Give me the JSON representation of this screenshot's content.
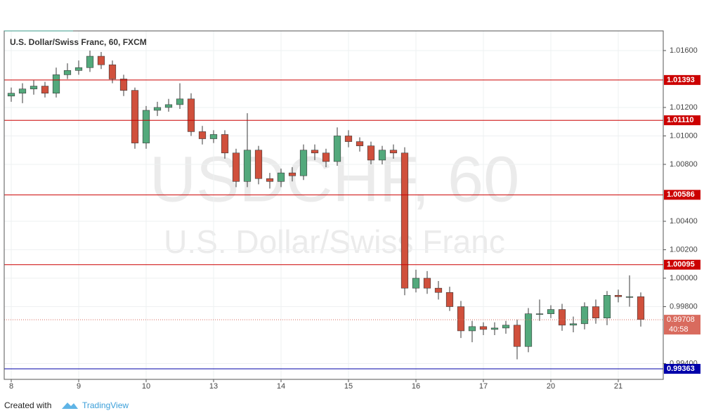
{
  "chart_data": {
    "type": "candlestick",
    "title": "U.S. Dollar/Swiss Franc, 60, FXCM",
    "watermark": "USDCHF, 60",
    "watermark_subtitle": "U.S. Dollar/Swiss Franc",
    "footer": "Created with",
    "brand": "TradingView",
    "countdown": "40:58",
    "grid": true,
    "up_color": "#53a97c",
    "down_color": "#d0503c",
    "wick_color": "#3a3a3a",
    "x": [
      0,
      4,
      8,
      12,
      16,
      20,
      24,
      28,
      32,
      36,
      40,
      44,
      48,
      52,
      56,
      60,
      64,
      68,
      72,
      76,
      80,
      84,
      88,
      92,
      96,
      100,
      104,
      108,
      112,
      116,
      120,
      124,
      128,
      132,
      136,
      140,
      144,
      148,
      152,
      156,
      160,
      164,
      168,
      172,
      176,
      180,
      184,
      188,
      192,
      196,
      200,
      204,
      208,
      212,
      216,
      220,
      224
    ],
    "open": [
      1.0128,
      1.013,
      1.0133,
      1.0135,
      1.013,
      1.0143,
      1.0146,
      1.0148,
      1.0156,
      1.015,
      1.014,
      1.0132,
      1.0095,
      1.0118,
      1.012,
      1.0122,
      1.0126,
      1.0103,
      1.0098,
      1.0101,
      1.0088,
      1.0068,
      1.009,
      1.007,
      1.0068,
      1.0074,
      1.0072,
      1.009,
      1.0088,
      1.0082,
      1.01,
      1.0096,
      1.0093,
      1.0083,
      1.009,
      1.0088,
      0.9993,
      1.0,
      0.9993,
      0.999,
      0.998,
      0.9963,
      0.9966,
      0.9964,
      0.9965,
      0.9967,
      0.9952,
      0.9975,
      0.9975,
      0.9978,
      0.9967,
      0.9968,
      0.998,
      0.9972,
      0.9988,
      0.9987,
      0.9987
    ],
    "high": [
      1.0134,
      1.0137,
      1.0139,
      1.0138,
      1.0148,
      1.0151,
      1.0153,
      1.016,
      1.0159,
      1.0153,
      1.0143,
      1.0134,
      1.0121,
      1.0124,
      1.0126,
      1.0137,
      1.013,
      1.0107,
      1.0104,
      1.0104,
      1.0091,
      1.0116,
      1.0093,
      1.0074,
      1.0077,
      1.0078,
      1.0094,
      1.0094,
      1.0091,
      1.0106,
      1.0104,
      1.0099,
      1.0096,
      1.0093,
      1.0094,
      1.0092,
      1.0006,
      1.0005,
      0.9998,
      0.9994,
      0.9984,
      0.997,
      0.9969,
      0.9969,
      0.997,
      0.9971,
      0.9979,
      0.9985,
      0.9981,
      0.9982,
      0.9973,
      0.9983,
      0.9985,
      0.9991,
      0.9992,
      1.0002,
      0.999
    ],
    "low": [
      1.0124,
      1.0123,
      1.0129,
      1.0127,
      1.0127,
      1.014,
      1.0143,
      1.0145,
      1.0147,
      1.0137,
      1.0128,
      1.0091,
      1.0091,
      1.0114,
      1.0117,
      1.0119,
      1.01,
      1.0094,
      1.0095,
      1.0084,
      1.0064,
      1.0064,
      1.0066,
      1.0063,
      1.0064,
      1.0068,
      1.0069,
      1.0083,
      1.0078,
      1.0079,
      1.0092,
      1.0089,
      1.008,
      1.008,
      1.0084,
      0.9988,
      0.999,
      0.9989,
      0.9985,
      0.9977,
      0.9958,
      0.9955,
      0.996,
      0.996,
      0.9961,
      0.9943,
      0.9948,
      0.997,
      0.9972,
      0.9963,
      0.9962,
      0.9964,
      0.9968,
      0.9967,
      0.9983,
      0.998,
      0.9966
    ],
    "close": [
      1.013,
      1.0133,
      1.0135,
      1.013,
      1.0143,
      1.0146,
      1.0148,
      1.0156,
      1.015,
      1.014,
      1.0132,
      1.0095,
      1.0118,
      1.012,
      1.0122,
      1.0126,
      1.0103,
      1.0098,
      1.0101,
      1.0088,
      1.0068,
      1.009,
      1.007,
      1.0068,
      1.0074,
      1.0072,
      1.009,
      1.0088,
      1.0082,
      1.01,
      1.0096,
      1.0093,
      1.0083,
      1.009,
      1.0088,
      0.9993,
      1.0,
      0.9993,
      0.999,
      0.998,
      0.9963,
      0.9966,
      0.9964,
      0.9965,
      0.9967,
      0.9952,
      0.9975,
      0.9975,
      0.9978,
      0.9967,
      0.9968,
      0.998,
      0.9972,
      0.9988,
      0.9987,
      0.9987,
      0.9971
    ],
    "xlim": [
      -2.5,
      232
    ],
    "ylim": [
      0.99289,
      1.01738
    ],
    "xticks": [
      {
        "value": 0,
        "label": "8"
      },
      {
        "value": 24,
        "label": "9"
      },
      {
        "value": 48,
        "label": "10"
      },
      {
        "value": 72,
        "label": "13"
      },
      {
        "value": 96,
        "label": "14"
      },
      {
        "value": 120,
        "label": "15"
      },
      {
        "value": 144,
        "label": "16"
      },
      {
        "value": 168,
        "label": "17"
      },
      {
        "value": 192,
        "label": "20"
      },
      {
        "value": 216,
        "label": "21"
      }
    ],
    "yticks": [
      {
        "value": 1.016,
        "label": "1.01600"
      },
      {
        "value": 1.012,
        "label": "1.01200"
      },
      {
        "value": 1.01,
        "label": "1.01000"
      },
      {
        "value": 1.008,
        "label": "1.00800"
      },
      {
        "value": 1.004,
        "label": "1.00400"
      },
      {
        "value": 1.002,
        "label": "1.00200"
      },
      {
        "value": 1.0,
        "label": "1.00000"
      },
      {
        "value": 0.998,
        "label": "0.99800"
      },
      {
        "value": 0.994,
        "label": "0.99400"
      }
    ],
    "levels": [
      {
        "value": 1.01393,
        "label": "1.01393",
        "color": "#cc0000"
      },
      {
        "value": 1.0111,
        "label": "1.01110",
        "color": "#cc0000"
      },
      {
        "value": 1.00586,
        "label": "1.00586",
        "color": "#cc0000"
      },
      {
        "value": 1.00095,
        "label": "1.00095",
        "color": "#cc0000"
      },
      {
        "value": 0.99363,
        "label": "0.99363",
        "color": "#0000aa"
      }
    ],
    "last_price": {
      "value": 0.99708,
      "label": "0.99708",
      "color": "#d96b5e"
    }
  }
}
